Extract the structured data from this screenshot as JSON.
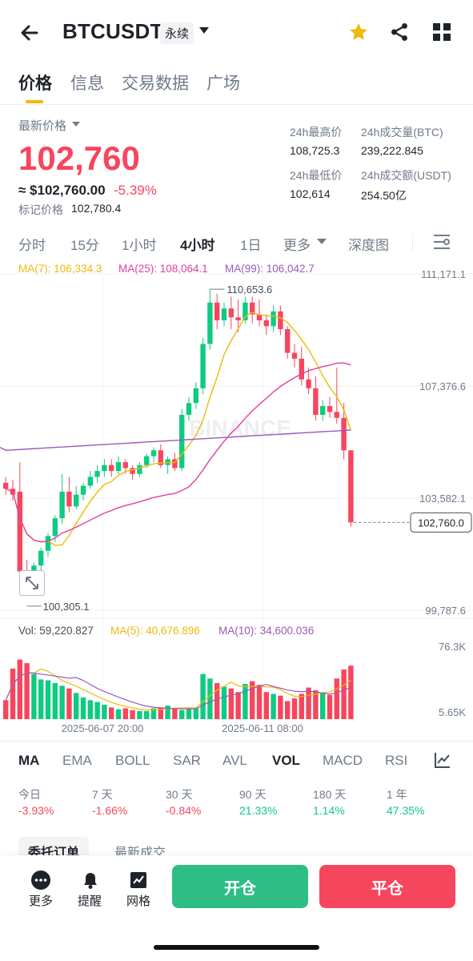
{
  "header": {
    "symbol": "BTCUSDT",
    "contract_type": "永续"
  },
  "tabs": [
    {
      "label": "价格",
      "active": true
    },
    {
      "label": "信息",
      "active": false
    },
    {
      "label": "交易数据",
      "active": false
    },
    {
      "label": "广场",
      "active": false
    }
  ],
  "price": {
    "label": "最新价格",
    "last": "102,760",
    "approx": "≈ $102,760.00",
    "change": "-5.39%",
    "mark_label": "标记价格",
    "mark_value": "102,780.4"
  },
  "stats": {
    "high_label": "24h最高价",
    "high_value": "108,725.3",
    "vol_btc_label": "24h成交量(BTC)",
    "vol_btc_value": "239,222.845",
    "low_label": "24h最低价",
    "low_value": "102,614",
    "vol_usdt_label": "24h成交额(USDT)",
    "vol_usdt_value": "254.50亿"
  },
  "timeframes": [
    {
      "label": "分时",
      "active": false
    },
    {
      "label": "15分",
      "active": false
    },
    {
      "label": "1小时",
      "active": false
    },
    {
      "label": "4小时",
      "active": true
    },
    {
      "label": "1日",
      "active": false
    },
    {
      "label": "更多",
      "active": false
    },
    {
      "label": "深度图",
      "active": false
    }
  ],
  "ma_legend": {
    "ma7": "MA(7): 106,334.3",
    "ma25": "MA(25): 108,064.1",
    "ma99": "MA(99): 106,042.7"
  },
  "vol_legend": {
    "vol": "Vol: 59,220.827",
    "ma5": "MA(5): 40,676.896",
    "ma10": "MA(10): 34,600.036"
  },
  "colors": {
    "up": "#0ecb81",
    "down": "#f6465d",
    "accent": "#f0b90b",
    "ma7": "#f0b90b",
    "ma25": "#e040a0",
    "ma99": "#9b59b6"
  },
  "watermark": "BINANCE",
  "indicators": [
    {
      "label": "MA",
      "active": true
    },
    {
      "label": "EMA",
      "active": false
    },
    {
      "label": "BOLL",
      "active": false
    },
    {
      "label": "SAR",
      "active": false
    },
    {
      "label": "AVL",
      "active": false
    },
    {
      "label": "VOL",
      "active": true
    },
    {
      "label": "MACD",
      "active": false
    },
    {
      "label": "RSI",
      "active": false
    }
  ],
  "performance": [
    {
      "label": "今日",
      "value": "-3.93%"
    },
    {
      "label": "7 天",
      "value": "-1.66%"
    },
    {
      "label": "30 天",
      "value": "-0.84%"
    },
    {
      "label": "90 天",
      "value": "21.33%"
    },
    {
      "label": "180 天",
      "value": "1.14%"
    },
    {
      "label": "1 年",
      "value": "47.35%"
    }
  ],
  "orderbook_tabs": [
    "委托订单",
    "最新成交"
  ],
  "bottom": {
    "more": "更多",
    "alert": "提醒",
    "grid": "网格",
    "open": "开仓",
    "close": "平仓"
  },
  "chart_data": {
    "type": "candlestick",
    "interval": "4h",
    "y_axis_labels": [
      "111,171.1",
      "107,376.6",
      "103,582.1",
      "99,787.6"
    ],
    "y_range": [
      99787.6,
      111171.1
    ],
    "x_tick_labels": [
      "2025-06-07 20:00",
      "2025-06-11 08:00"
    ],
    "annotations": {
      "high": "110,653.6",
      "low": "100,305.1",
      "last": "102,760.0"
    },
    "candles": [
      {
        "o": 104100,
        "h": 104300,
        "c": 103900,
        "l": 103700
      },
      {
        "o": 103900,
        "h": 104200,
        "c": 103700,
        "l": 103500
      },
      {
        "o": 103800,
        "h": 104800,
        "c": 101100,
        "l": 100900
      },
      {
        "o": 101100,
        "h": 101500,
        "c": 100800,
        "l": 100305
      },
      {
        "o": 100800,
        "h": 101400,
        "c": 101300,
        "l": 100600
      },
      {
        "o": 101300,
        "h": 101900,
        "c": 101800,
        "l": 101100
      },
      {
        "o": 101800,
        "h": 102400,
        "c": 102300,
        "l": 101600
      },
      {
        "o": 102300,
        "h": 103000,
        "c": 102900,
        "l": 102100
      },
      {
        "o": 102900,
        "h": 104400,
        "c": 103800,
        "l": 102700
      },
      {
        "o": 103800,
        "h": 104300,
        "c": 103300,
        "l": 103100
      },
      {
        "o": 103300,
        "h": 104000,
        "c": 103700,
        "l": 103200
      },
      {
        "o": 103700,
        "h": 104100,
        "c": 104000,
        "l": 103500
      },
      {
        "o": 104000,
        "h": 104500,
        "c": 104300,
        "l": 103900
      },
      {
        "o": 104300,
        "h": 104700,
        "c": 104500,
        "l": 104100
      },
      {
        "o": 104500,
        "h": 104900,
        "c": 104700,
        "l": 104300
      },
      {
        "o": 104700,
        "h": 104900,
        "c": 104500,
        "l": 104300
      },
      {
        "o": 104500,
        "h": 105000,
        "c": 104800,
        "l": 104400
      },
      {
        "o": 104800,
        "h": 104900,
        "c": 104600,
        "l": 104400
      },
      {
        "o": 104600,
        "h": 104700,
        "c": 104400,
        "l": 104200
      },
      {
        "o": 104400,
        "h": 104800,
        "c": 104700,
        "l": 104300
      },
      {
        "o": 104700,
        "h": 105100,
        "c": 105000,
        "l": 104600
      },
      {
        "o": 105000,
        "h": 105300,
        "c": 105200,
        "l": 104800
      },
      {
        "o": 105200,
        "h": 105400,
        "c": 104700,
        "l": 104600
      },
      {
        "o": 104700,
        "h": 105000,
        "c": 104900,
        "l": 104400
      },
      {
        "o": 104900,
        "h": 105100,
        "c": 104600,
        "l": 104500
      },
      {
        "o": 104600,
        "h": 106600,
        "c": 106400,
        "l": 104500
      },
      {
        "o": 106400,
        "h": 107000,
        "c": 106800,
        "l": 106200
      },
      {
        "o": 106800,
        "h": 107500,
        "c": 107300,
        "l": 106600
      },
      {
        "o": 107300,
        "h": 109000,
        "c": 108800,
        "l": 107100
      },
      {
        "o": 108800,
        "h": 110653.6,
        "c": 110200,
        "l": 108600
      },
      {
        "o": 110200,
        "h": 110500,
        "c": 109600,
        "l": 109300
      },
      {
        "o": 109600,
        "h": 110200,
        "c": 110000,
        "l": 109400
      },
      {
        "o": 110000,
        "h": 110400,
        "c": 109700,
        "l": 109300
      },
      {
        "o": 109700,
        "h": 110300,
        "c": 109600,
        "l": 109200
      },
      {
        "o": 109600,
        "h": 110400,
        "c": 110200,
        "l": 109500
      },
      {
        "o": 110200,
        "h": 110400,
        "c": 109800,
        "l": 109500
      },
      {
        "o": 109800,
        "h": 110300,
        "c": 109600,
        "l": 109400
      },
      {
        "o": 109600,
        "h": 109800,
        "c": 109400,
        "l": 109100
      },
      {
        "o": 109400,
        "h": 110100,
        "c": 109900,
        "l": 109200
      },
      {
        "o": 109900,
        "h": 110100,
        "c": 109300,
        "l": 109100
      },
      {
        "o": 109300,
        "h": 109400,
        "c": 108500,
        "l": 108300
      },
      {
        "o": 108500,
        "h": 108800,
        "c": 108300,
        "l": 108000
      },
      {
        "o": 108300,
        "h": 108700,
        "c": 107600,
        "l": 107400
      },
      {
        "o": 107600,
        "h": 108000,
        "c": 107300,
        "l": 107100
      },
      {
        "o": 107300,
        "h": 107700,
        "c": 106400,
        "l": 106200
      },
      {
        "o": 106400,
        "h": 106900,
        "c": 106700,
        "l": 106200
      },
      {
        "o": 106700,
        "h": 107000,
        "c": 106500,
        "l": 106300
      },
      {
        "o": 106500,
        "h": 108000,
        "c": 106300,
        "l": 106100
      },
      {
        "o": 106300,
        "h": 106800,
        "c": 105200,
        "l": 104900
      },
      {
        "o": 105200,
        "h": 105200,
        "c": 102760,
        "l": 102614
      }
    ],
    "volume_y_labels": [
      "76.3K",
      "5.65K"
    ],
    "volume_range": [
      0,
      76300
    ],
    "volumes": [
      21000,
      56000,
      66000,
      62000,
      50000,
      44000,
      43000,
      40000,
      37000,
      34000,
      29000,
      24000,
      21000,
      19000,
      16000,
      13000,
      11000,
      12000,
      10000,
      9000,
      9000,
      12000,
      13000,
      15000,
      12000,
      10000,
      13000,
      12000,
      50000,
      45000,
      40000,
      36000,
      34000,
      30000,
      39000,
      42000,
      38000,
      30000,
      28000,
      26000,
      20000,
      23000,
      28000,
      35000,
      32000,
      29000,
      27000,
      45000,
      55000,
      59220
    ]
  }
}
